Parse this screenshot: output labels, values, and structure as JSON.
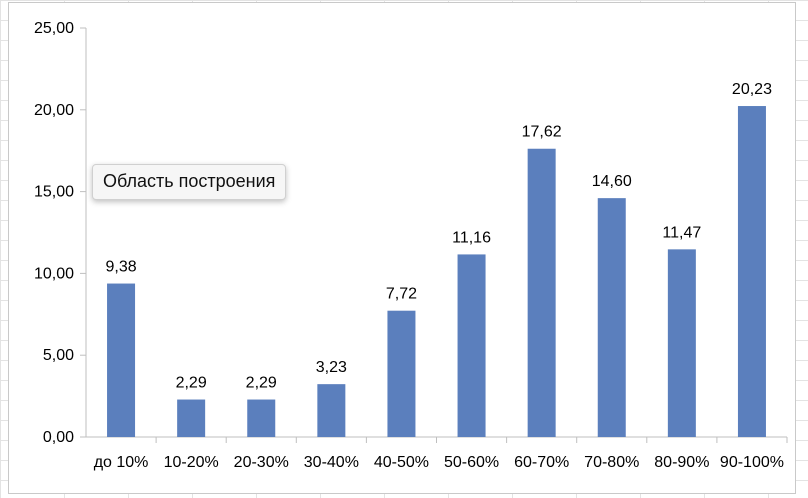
{
  "chart_data": {
    "type": "bar",
    "categories": [
      "до 10%",
      "10-20%",
      "20-30%",
      "30-40%",
      "40-50%",
      "50-60%",
      "60-70%",
      "70-80%",
      "80-90%",
      "90-100%"
    ],
    "values": [
      9.38,
      2.29,
      2.29,
      3.23,
      7.72,
      11.16,
      17.62,
      14.6,
      11.47,
      20.23
    ],
    "data_labels": [
      "9,38",
      "2,29",
      "2,29",
      "3,23",
      "7,72",
      "11,16",
      "17,62",
      "14,60",
      "11,47",
      "20,23"
    ],
    "y_ticks": [
      0,
      5,
      10,
      15,
      20,
      25
    ],
    "y_tick_labels": [
      "0,00",
      "5,00",
      "10,00",
      "15,00",
      "20,00",
      "25,00"
    ],
    "ylim": [
      0,
      25
    ],
    "title": "",
    "xlabel": "",
    "ylabel": "",
    "grid": false,
    "bar_color": "#5b7fbd"
  },
  "tooltip": {
    "text": "Область построения"
  }
}
